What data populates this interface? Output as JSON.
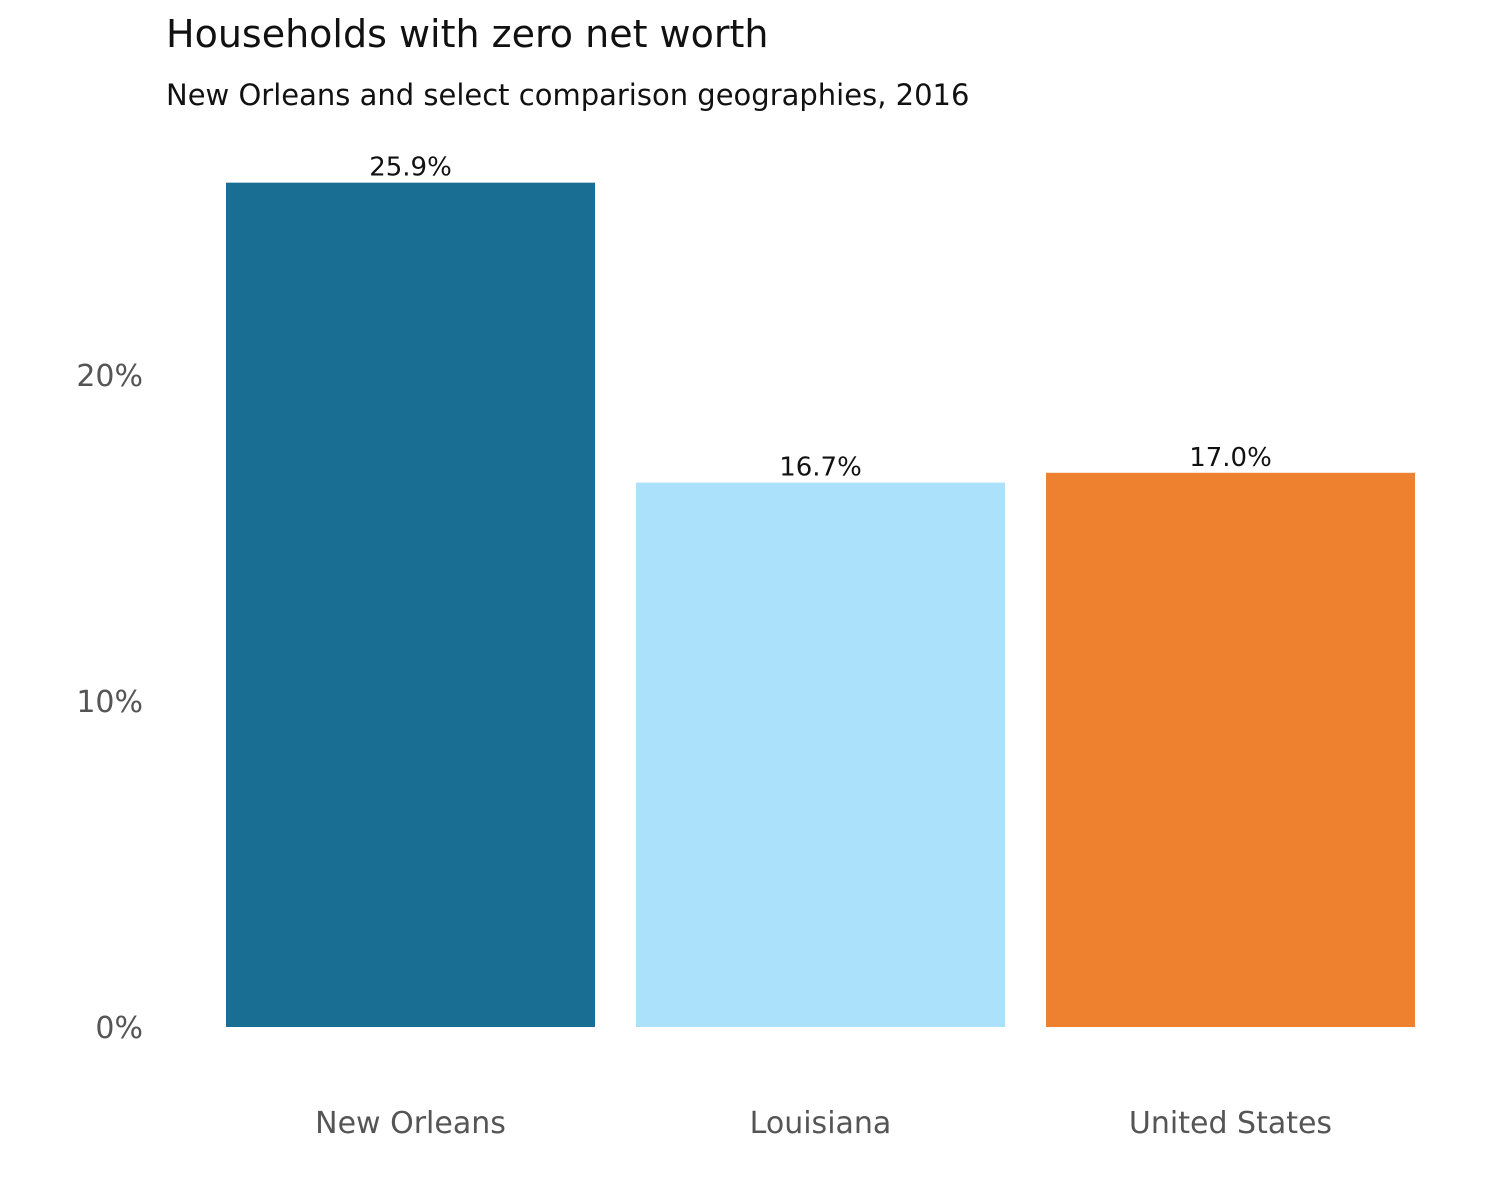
{
  "chart_data": {
    "type": "bar",
    "title": "Households with zero net worth",
    "subtitle": "New Orleans and select comparison geographies, 2016",
    "categories": [
      "New Orleans",
      "Louisiana",
      "United States"
    ],
    "values": [
      25.9,
      16.7,
      17.0
    ],
    "data_labels": [
      "25.9%",
      "16.7%",
      "17.0%"
    ],
    "colors": [
      "#196f93",
      "#abe1fa",
      "#ee8130"
    ],
    "ylim": [
      0,
      28
    ],
    "yticks": [
      0,
      10,
      20
    ],
    "ytick_labels": [
      "0%",
      "10%",
      "20%"
    ],
    "xlabel": "",
    "ylabel": "",
    "grid": false,
    "legend": "none"
  }
}
